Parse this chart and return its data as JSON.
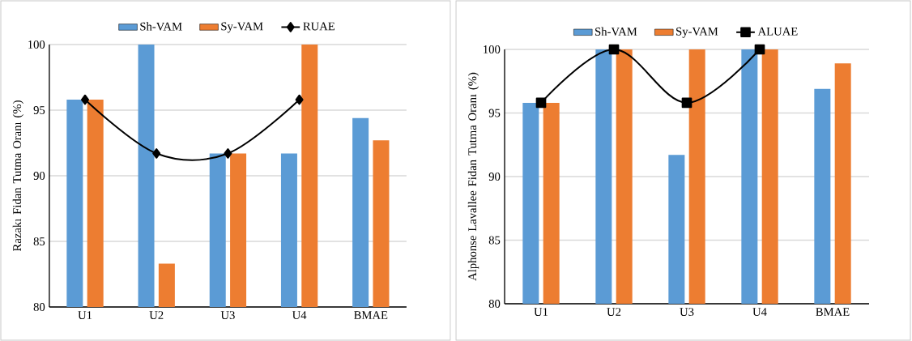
{
  "chart_data": [
    {
      "type": "bar",
      "ylabel": "Razakı Fidan Tutma Oranı (%)",
      "categories": [
        "U1",
        "U2",
        "U3",
        "U4",
        "BMAE"
      ],
      "ylim": [
        80,
        100
      ],
      "yticks": [
        80,
        85,
        90,
        95,
        100
      ],
      "grid": "y",
      "legend": "top",
      "series": [
        {
          "name": "Sh-VAM",
          "color": "#5b9bd5",
          "values": [
            95.8,
            100,
            91.7,
            91.7,
            94.4
          ]
        },
        {
          "name": "Sy-VAM",
          "color": "#ed7d31",
          "values": [
            95.8,
            83.3,
            91.7,
            100,
            92.7
          ]
        },
        {
          "name": "RUAE",
          "type": "line",
          "color": "#000000",
          "marker": "diamond",
          "values": [
            95.8,
            91.7,
            91.7,
            95.8,
            null
          ]
        }
      ]
    },
    {
      "type": "bar",
      "ylabel": "Alphonse Lavallee Fidan Tutma Oranı (%)",
      "categories": [
        "U1",
        "U2",
        "U3",
        "U4",
        "BMAE"
      ],
      "ylim": [
        80,
        100
      ],
      "yticks": [
        80,
        85,
        90,
        95,
        100
      ],
      "grid": "y",
      "legend": "top",
      "series": [
        {
          "name": "Sh-VAM",
          "color": "#5b9bd5",
          "values": [
            95.8,
            100,
            91.7,
            100,
            96.9
          ]
        },
        {
          "name": "Sy-VAM",
          "color": "#ed7d31",
          "values": [
            95.8,
            100,
            100,
            100,
            98.9
          ]
        },
        {
          "name": "ALUAE",
          "type": "line",
          "color": "#000000",
          "marker": "square",
          "values": [
            95.8,
            100,
            95.8,
            100,
            null
          ]
        }
      ]
    }
  ]
}
